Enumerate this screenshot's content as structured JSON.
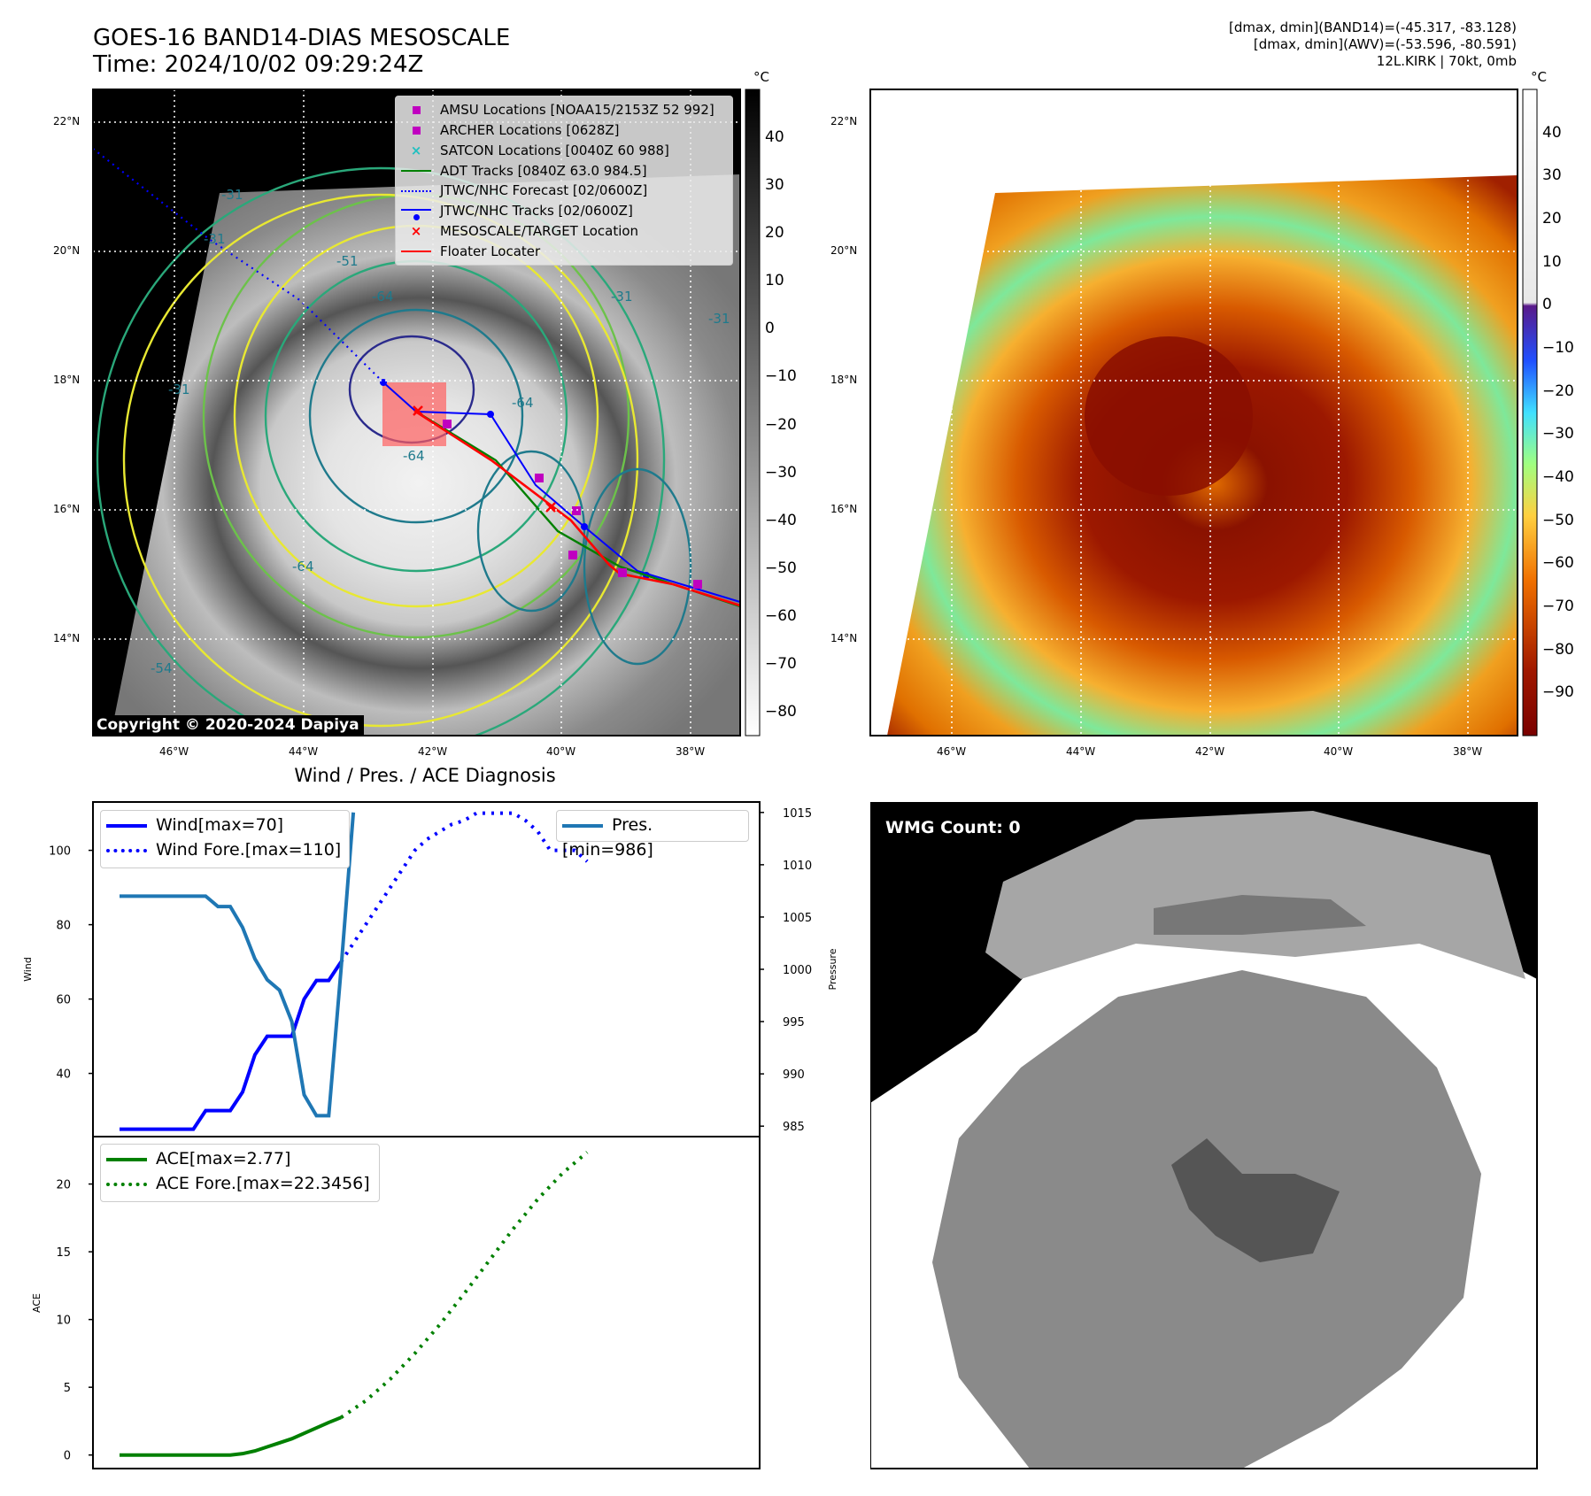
{
  "header": {
    "title_line1": "GOES-16 BAND14-DIAS MESOSCALE",
    "title_line2": "Time: 2024/10/02 09:29:24Z",
    "info_line1": "[dmax, dmin](BAND14)=(-45.317, -83.128)",
    "info_line2": "[dmax, dmin](AWV)=(-53.596, -80.591)",
    "info_line3": "12L.KIRK | 70kt, 0mb"
  },
  "map_axes": {
    "lat_labels": [
      "22°N",
      "20°N",
      "18°N",
      "16°N",
      "14°N"
    ],
    "lon_labels": [
      "46°W",
      "44°W",
      "42°W",
      "40°W",
      "38°W"
    ]
  },
  "ir_colorbar": {
    "unit": "°C",
    "ticks": [
      "40",
      "30",
      "20",
      "10",
      "0",
      "−10",
      "−20",
      "−30",
      "−40",
      "−50",
      "−60",
      "−70",
      "−80"
    ],
    "range": [
      -85,
      50
    ]
  },
  "wv_colorbar": {
    "unit": "°C",
    "ticks": [
      "40",
      "30",
      "20",
      "10",
      "0",
      "−10",
      "−20",
      "−30",
      "−40",
      "−50",
      "−60",
      "−70",
      "−80",
      "−90"
    ],
    "range": [
      -100,
      50
    ]
  },
  "contour_labels": [
    "-31",
    "-31",
    "-31",
    "-31",
    "-31",
    "-51",
    "-54",
    "-64",
    "-64",
    "-64",
    "-64"
  ],
  "legend": {
    "items": [
      {
        "label": "AMSU Locations [NOAA15/2153Z 52 992]",
        "color": "#c000c0",
        "marker": "square"
      },
      {
        "label": "ARCHER Locations [0628Z]",
        "color": "#c000c0",
        "marker": "square"
      },
      {
        "label": "SATCON Locations [0040Z 60 988]",
        "color": "#20c0c0",
        "marker": "x"
      },
      {
        "label": "ADT Tracks [0840Z 63.0 984.5]",
        "color": "#008000",
        "marker": "line"
      },
      {
        "label": "JTWC/NHC Forecast [02/0600Z]",
        "color": "#0000ff",
        "marker": "dotted"
      },
      {
        "label": "JTWC/NHC Tracks [02/0600Z]",
        "color": "#0000ff",
        "marker": "line-dot"
      },
      {
        "label": "MESOSCALE/TARGET Location",
        "color": "#ff0000",
        "marker": "x"
      },
      {
        "label": "Floater Locater",
        "color": "#ff0000",
        "marker": "line"
      }
    ]
  },
  "copyright": "Copyright © 2020-2024 Dapiya",
  "wmg": {
    "label": "WMG Count: 0"
  },
  "chart_data": [
    {
      "type": "line",
      "title": "Wind / Pres. / ACE Diagnosis",
      "ylabel": "Wind",
      "y2label": "Pressure",
      "ylim": [
        23,
        113
      ],
      "y2lim": [
        984,
        1016
      ],
      "yticks": [
        40,
        60,
        80,
        100
      ],
      "y2ticks": [
        985,
        990,
        995,
        1000,
        1005,
        1010,
        1015
      ],
      "series": [
        {
          "name": "Wind[max=70]",
          "axis": "left",
          "style": "solid",
          "color": "#0000ff",
          "x": [
            0,
            1,
            2,
            3,
            4,
            5,
            6,
            7,
            8,
            9,
            10,
            11,
            12,
            13,
            14,
            15,
            16,
            17,
            18
          ],
          "values": [
            25,
            25,
            25,
            25,
            25,
            25,
            25,
            30,
            30,
            30,
            35,
            45,
            50,
            50,
            50,
            60,
            65,
            65,
            70
          ]
        },
        {
          "name": "Wind Fore.[max=110]",
          "axis": "left",
          "style": "dotted",
          "color": "#0000ff",
          "x": [
            18,
            19,
            20,
            21,
            22,
            23,
            24,
            25,
            26,
            27,
            28,
            29,
            30,
            31,
            32,
            33,
            34,
            35,
            36,
            37,
            38
          ],
          "values": [
            70,
            75,
            80,
            85,
            90,
            95,
            100,
            103,
            105,
            107,
            108,
            110,
            110,
            110,
            110,
            108,
            105,
            100,
            100,
            100,
            97
          ]
        },
        {
          "name": "Pres.[min=986]",
          "axis": "right",
          "style": "solid",
          "color": "#1f77b4",
          "x": [
            0,
            1,
            2,
            3,
            4,
            5,
            6,
            7,
            8,
            9,
            10,
            11,
            12,
            13,
            14,
            15,
            16,
            17,
            18,
            19
          ],
          "values": [
            1007,
            1007,
            1007,
            1007,
            1007,
            1007,
            1007,
            1007,
            1006,
            1006,
            1004,
            1001,
            999,
            998,
            995,
            988,
            986,
            986,
            1000,
            1015
          ]
        }
      ]
    },
    {
      "type": "line",
      "ylabel": "ACE",
      "ylim": [
        -1,
        23.5
      ],
      "yticks": [
        0,
        5,
        10,
        15,
        20
      ],
      "series": [
        {
          "name": "ACE[max=2.77]",
          "style": "solid",
          "color": "#008000",
          "x": [
            0,
            1,
            2,
            3,
            4,
            5,
            6,
            7,
            8,
            9,
            10,
            11,
            12,
            13,
            14,
            15,
            16,
            17,
            18
          ],
          "values": [
            0,
            0,
            0,
            0,
            0,
            0,
            0,
            0,
            0,
            0,
            0.1,
            0.3,
            0.6,
            0.9,
            1.2,
            1.6,
            2.0,
            2.4,
            2.77
          ]
        },
        {
          "name": "ACE Fore.[max=22.3456]",
          "style": "dotted",
          "color": "#008000",
          "x": [
            18,
            20,
            22,
            24,
            26,
            28,
            30,
            32,
            34,
            36,
            38
          ],
          "values": [
            2.77,
            4.0,
            5.6,
            7.5,
            9.6,
            11.9,
            14.3,
            16.7,
            18.9,
            20.8,
            22.3456
          ]
        }
      ]
    }
  ]
}
